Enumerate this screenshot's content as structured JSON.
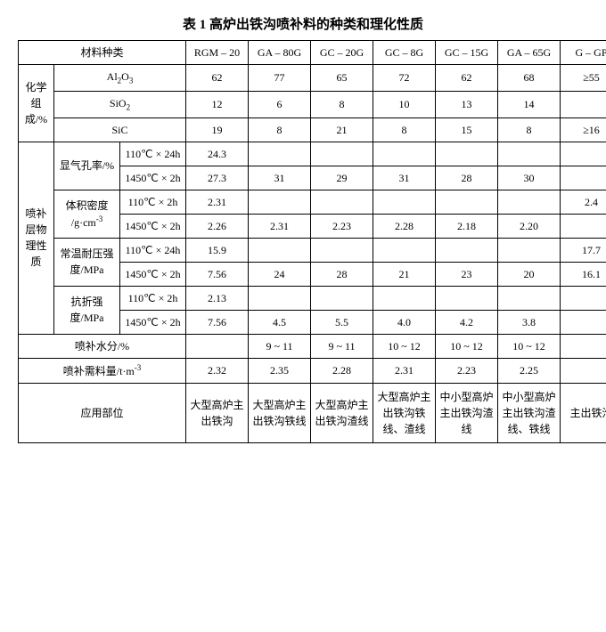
{
  "title": "表 1 高炉出铁沟喷补料的种类和理化性质",
  "header": {
    "material_type": "材料种类",
    "cols": [
      "RGM – 20",
      "GA – 80G",
      "GC – 20G",
      "GC – 8G",
      "GC – 15G",
      "GA – 65G",
      "G – GP"
    ]
  },
  "chem": {
    "label": "化学组成/%",
    "rows": {
      "al2o3": {
        "label_html": "Al₂O₃",
        "vals": [
          "62",
          "77",
          "65",
          "72",
          "62",
          "68",
          "≥55"
        ]
      },
      "sio2": {
        "label_html": "SiO₂",
        "vals": [
          "12",
          "6",
          "8",
          "10",
          "13",
          "14",
          ""
        ]
      },
      "sic": {
        "label_html": "SiC",
        "vals": [
          "19",
          "8",
          "21",
          "8",
          "15",
          "8",
          "≥16"
        ]
      }
    }
  },
  "phys": {
    "label": "喷补层物理性质",
    "porosity": {
      "label": "显气孔率/%",
      "r1": {
        "cond": "110℃ × 24h",
        "vals": [
          "24.3",
          "",
          "",
          "",
          "",
          "",
          ""
        ]
      },
      "r2": {
        "cond": "1450℃ × 2h",
        "vals": [
          "27.3",
          "31",
          "29",
          "31",
          "28",
          "30",
          ""
        ]
      }
    },
    "density": {
      "label_html": "体积密度/g·cm⁻³",
      "r1": {
        "cond": "110℃ × 2h",
        "vals": [
          "2.31",
          "",
          "",
          "",
          "",
          "",
          "2.4"
        ]
      },
      "r2": {
        "cond": "1450℃ × 2h",
        "vals": [
          "2.26",
          "2.31",
          "2.23",
          "2.28",
          "2.18",
          "2.20",
          ""
        ]
      }
    },
    "compress": {
      "label": "常温耐压强度/MPa",
      "r1": {
        "cond": "110℃ × 24h",
        "vals": [
          "15.9",
          "",
          "",
          "",
          "",
          "",
          "17.7"
        ]
      },
      "r2": {
        "cond": "1450℃ × 2h",
        "vals": [
          "7.56",
          "24",
          "28",
          "21",
          "23",
          "20",
          "16.1"
        ]
      }
    },
    "flex": {
      "label": "抗折强度/MPa",
      "r1": {
        "cond": "110℃ × 2h",
        "vals": [
          "2.13",
          "",
          "",
          "",
          "",
          "",
          ""
        ]
      },
      "r2": {
        "cond": "1450℃ × 2h",
        "vals": [
          "7.56",
          "4.5",
          "5.5",
          "4.0",
          "4.2",
          "3.8",
          ""
        ]
      }
    }
  },
  "moisture": {
    "label": "喷补水分/%",
    "vals": [
      "",
      "9 ~ 11",
      "9 ~ 11",
      "10 ~ 12",
      "10 ~ 12",
      "10 ~ 12",
      ""
    ]
  },
  "consumption": {
    "label_html": "喷补需料量/t·m⁻³",
    "vals": [
      "2.32",
      "2.35",
      "2.28",
      "2.31",
      "2.23",
      "2.25",
      ""
    ]
  },
  "application": {
    "label": "应用部位",
    "vals": [
      "大型高炉主出铁沟",
      "大型高炉主出铁沟铁线",
      "大型高炉主出铁沟渣线",
      "大型高炉主出铁沟铁线、渣线",
      "中小型高炉主出铁沟渣线",
      "中小型高炉主出铁沟渣线、铁线",
      "主出铁沟"
    ]
  },
  "style": {
    "font_family": "SimSun",
    "title_fontsize": 15,
    "cell_fontsize": 12,
    "border_color": "#000000",
    "background_color": "#ffffff",
    "text_color": "#000000"
  }
}
